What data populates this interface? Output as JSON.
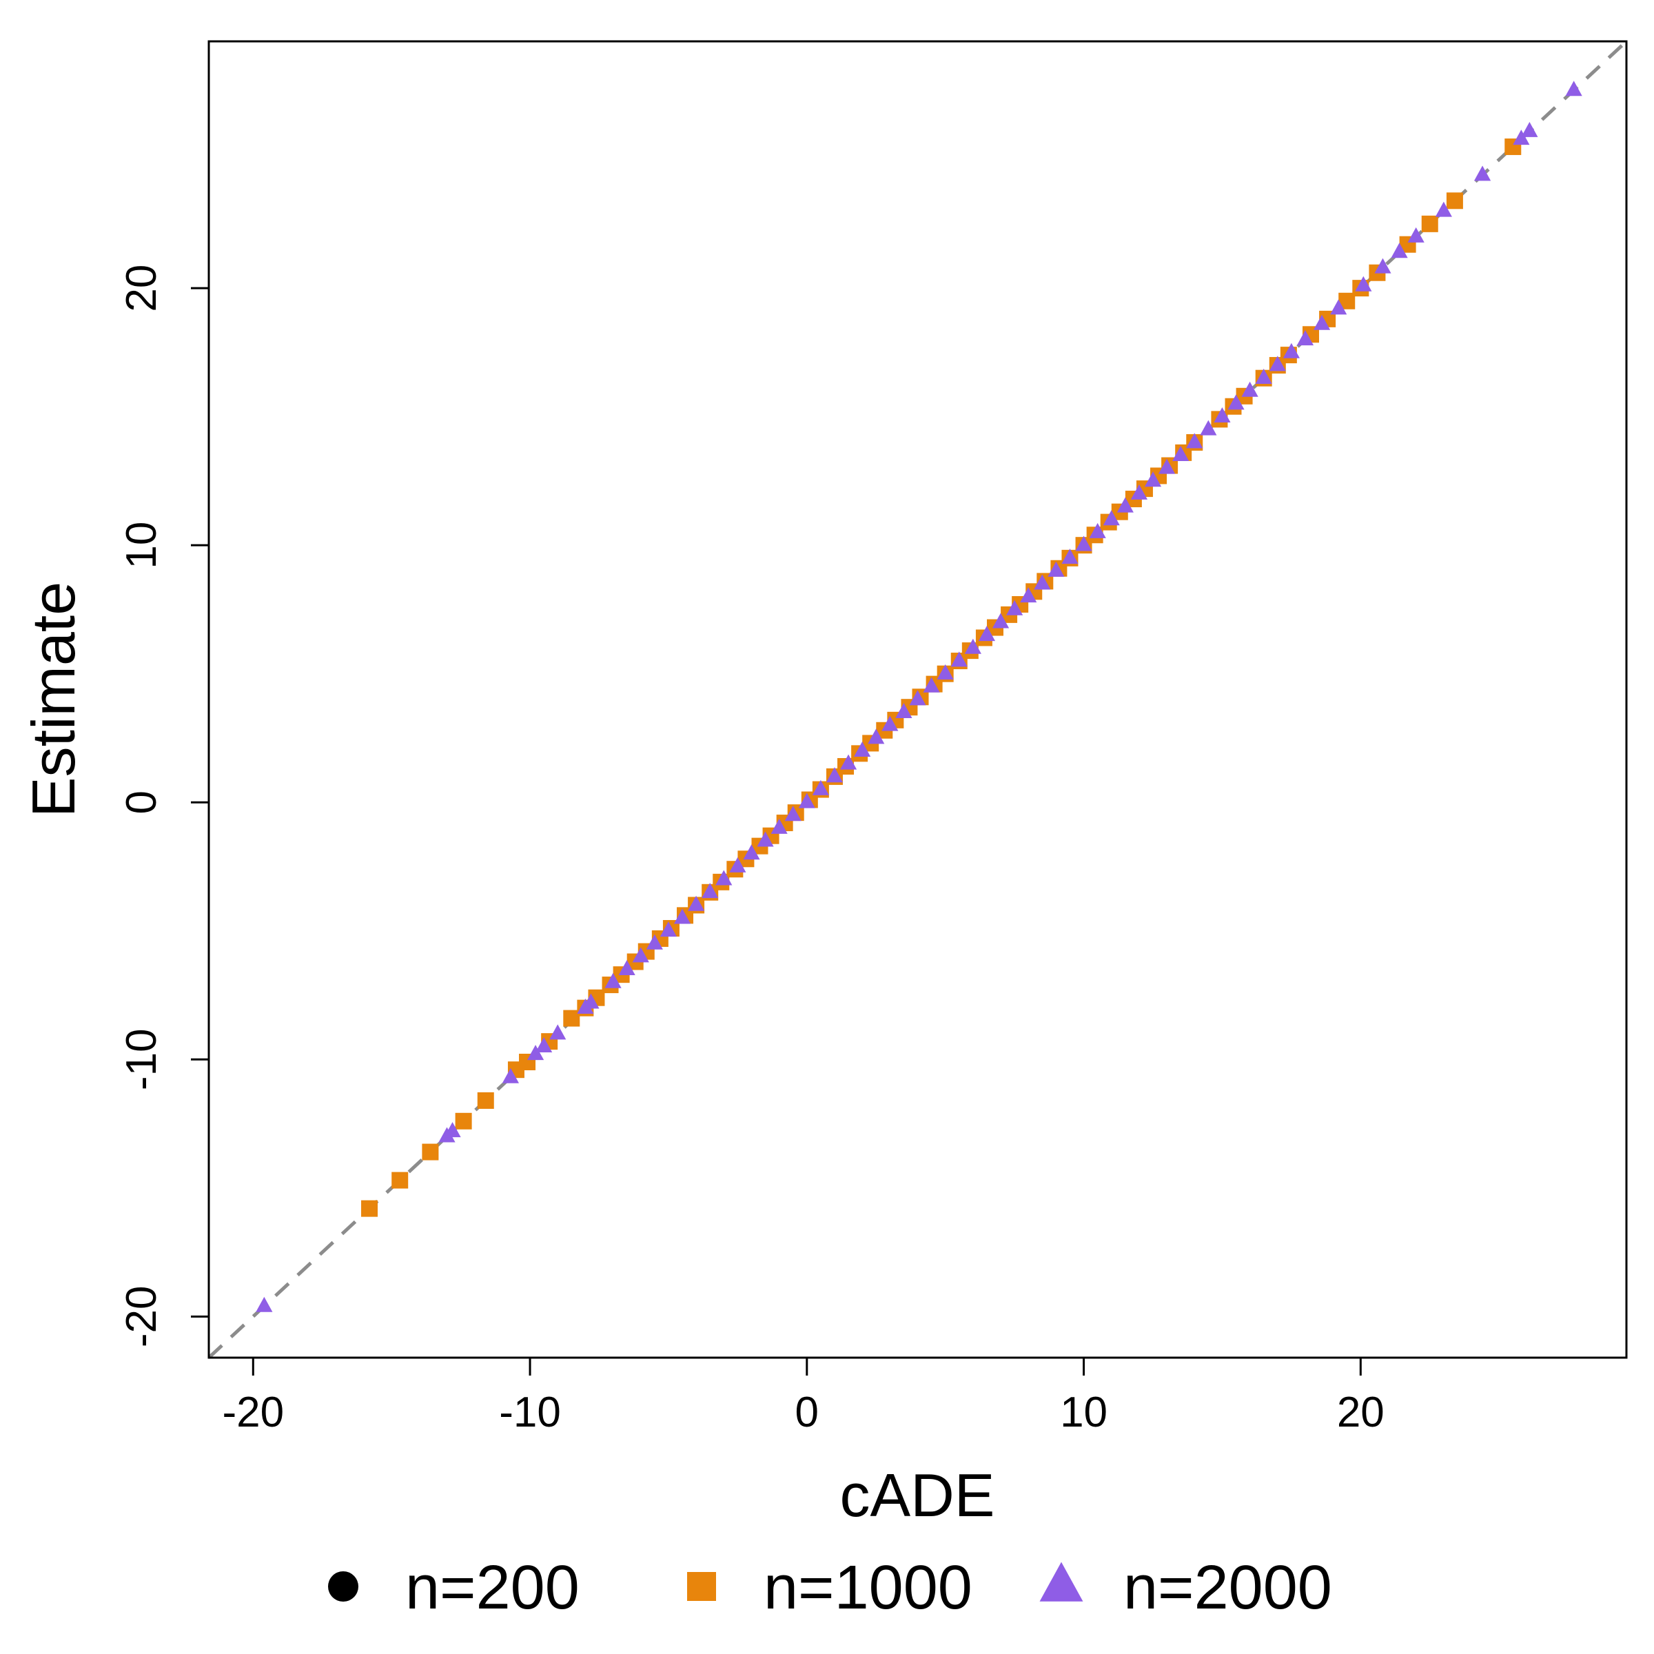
{
  "chart_data": {
    "type": "scatter",
    "title": "",
    "xlabel": "cADE",
    "ylabel": "Estimate",
    "xlim": [
      -21.6,
      29.6
    ],
    "ylim": [
      -21.6,
      29.6
    ],
    "xticks": [
      -20,
      -10,
      0,
      10,
      20
    ],
    "yticks": [
      -20,
      -10,
      0,
      10,
      20
    ],
    "xtick_labels": [
      "-20",
      "-10",
      "0",
      "10",
      "20"
    ],
    "ytick_labels": [
      "-20",
      "-10",
      "0",
      "10",
      "20"
    ],
    "grid": false,
    "reference_line": {
      "type": "identity",
      "style": "dashed",
      "color": "#8c8c8c"
    },
    "legend": {
      "position": "bottom",
      "entries": [
        "n=200",
        "n=1000",
        "n=2000"
      ]
    },
    "series": [
      {
        "name": "n=200",
        "marker": "circle",
        "color": "#000000",
        "points": []
      },
      {
        "name": "n=1000",
        "marker": "square",
        "color": "#e8850c",
        "points": [
          [
            -15.8,
            -15.8
          ],
          [
            -14.7,
            -14.7
          ],
          [
            -13.6,
            -13.6
          ],
          [
            -12.4,
            -12.4
          ],
          [
            -11.6,
            -11.6
          ],
          [
            -10.5,
            -10.4
          ],
          [
            -10.1,
            -10.1
          ],
          [
            -9.3,
            -9.3
          ],
          [
            -8.5,
            -8.4
          ],
          [
            -8.0,
            -8.0
          ],
          [
            -7.6,
            -7.6
          ],
          [
            -7.1,
            -7.1
          ],
          [
            -6.7,
            -6.7
          ],
          [
            -6.2,
            -6.2
          ],
          [
            -5.8,
            -5.8
          ],
          [
            -5.3,
            -5.3
          ],
          [
            -4.9,
            -4.9
          ],
          [
            -4.4,
            -4.4
          ],
          [
            -4.0,
            -4.0
          ],
          [
            -3.5,
            -3.5
          ],
          [
            -3.1,
            -3.1
          ],
          [
            -2.6,
            -2.6
          ],
          [
            -2.2,
            -2.2
          ],
          [
            -1.7,
            -1.7
          ],
          [
            -1.3,
            -1.3
          ],
          [
            -0.8,
            -0.8
          ],
          [
            -0.4,
            -0.4
          ],
          [
            0.1,
            0.1
          ],
          [
            0.5,
            0.5
          ],
          [
            1.0,
            1.0
          ],
          [
            1.4,
            1.4
          ],
          [
            1.9,
            1.9
          ],
          [
            2.3,
            2.3
          ],
          [
            2.8,
            2.8
          ],
          [
            3.2,
            3.2
          ],
          [
            3.7,
            3.7
          ],
          [
            4.1,
            4.1
          ],
          [
            4.6,
            4.6
          ],
          [
            5.0,
            5.0
          ],
          [
            5.5,
            5.5
          ],
          [
            5.9,
            5.9
          ],
          [
            6.4,
            6.4
          ],
          [
            6.8,
            6.8
          ],
          [
            7.3,
            7.3
          ],
          [
            7.7,
            7.7
          ],
          [
            8.2,
            8.2
          ],
          [
            8.6,
            8.6
          ],
          [
            9.1,
            9.1
          ],
          [
            9.5,
            9.5
          ],
          [
            10.0,
            10.0
          ],
          [
            10.4,
            10.4
          ],
          [
            10.9,
            10.9
          ],
          [
            11.3,
            11.3
          ],
          [
            11.8,
            11.8
          ],
          [
            12.2,
            12.2
          ],
          [
            12.7,
            12.7
          ],
          [
            13.1,
            13.1
          ],
          [
            13.6,
            13.6
          ],
          [
            14.0,
            14.0
          ],
          [
            14.9,
            14.9
          ],
          [
            15.4,
            15.4
          ],
          [
            15.8,
            15.8
          ],
          [
            16.5,
            16.5
          ],
          [
            17.0,
            17.0
          ],
          [
            17.4,
            17.4
          ],
          [
            18.2,
            18.2
          ],
          [
            18.8,
            18.8
          ],
          [
            19.5,
            19.5
          ],
          [
            20.0,
            20.0
          ],
          [
            20.6,
            20.6
          ],
          [
            21.7,
            21.7
          ],
          [
            22.5,
            22.5
          ],
          [
            23.4,
            23.4
          ],
          [
            25.5,
            25.5
          ]
        ]
      },
      {
        "name": "n=2000",
        "marker": "triangle",
        "color": "#8f5de6",
        "points": [
          [
            -19.6,
            -19.6
          ],
          [
            -13.0,
            -13.0
          ],
          [
            -12.8,
            -12.8
          ],
          [
            -10.7,
            -10.7
          ],
          [
            -9.8,
            -9.8
          ],
          [
            -9.5,
            -9.5
          ],
          [
            -9.0,
            -9.0
          ],
          [
            -8.0,
            -8.0
          ],
          [
            -7.8,
            -7.8
          ],
          [
            -7.0,
            -7.0
          ],
          [
            -6.5,
            -6.5
          ],
          [
            -6.0,
            -6.0
          ],
          [
            -5.5,
            -5.5
          ],
          [
            -5.0,
            -5.0
          ],
          [
            -4.5,
            -4.5
          ],
          [
            -4.0,
            -4.0
          ],
          [
            -3.5,
            -3.5
          ],
          [
            -3.0,
            -3.0
          ],
          [
            -2.5,
            -2.5
          ],
          [
            -2.0,
            -2.0
          ],
          [
            -1.5,
            -1.5
          ],
          [
            -1.0,
            -1.0
          ],
          [
            -0.5,
            -0.5
          ],
          [
            0.0,
            0.0
          ],
          [
            0.5,
            0.5
          ],
          [
            1.0,
            1.0
          ],
          [
            1.5,
            1.5
          ],
          [
            2.0,
            2.0
          ],
          [
            2.5,
            2.5
          ],
          [
            3.0,
            3.0
          ],
          [
            3.5,
            3.5
          ],
          [
            4.0,
            4.0
          ],
          [
            4.5,
            4.5
          ],
          [
            5.0,
            5.0
          ],
          [
            5.5,
            5.5
          ],
          [
            6.0,
            6.0
          ],
          [
            6.5,
            6.5
          ],
          [
            7.0,
            7.0
          ],
          [
            7.5,
            7.5
          ],
          [
            8.0,
            8.0
          ],
          [
            8.5,
            8.5
          ],
          [
            9.0,
            9.0
          ],
          [
            9.5,
            9.5
          ],
          [
            10.0,
            10.0
          ],
          [
            10.5,
            10.5
          ],
          [
            11.0,
            11.0
          ],
          [
            11.5,
            11.5
          ],
          [
            12.0,
            12.0
          ],
          [
            12.5,
            12.5
          ],
          [
            13.0,
            13.0
          ],
          [
            13.5,
            13.5
          ],
          [
            14.0,
            14.0
          ],
          [
            14.5,
            14.5
          ],
          [
            15.0,
            15.0
          ],
          [
            15.5,
            15.5
          ],
          [
            16.0,
            16.0
          ],
          [
            16.5,
            16.5
          ],
          [
            17.0,
            17.0
          ],
          [
            17.5,
            17.5
          ],
          [
            18.0,
            18.0
          ],
          [
            18.6,
            18.6
          ],
          [
            19.2,
            19.2
          ],
          [
            20.1,
            20.1
          ],
          [
            20.8,
            20.8
          ],
          [
            21.4,
            21.4
          ],
          [
            22.0,
            22.0
          ],
          [
            23.0,
            23.0
          ],
          [
            24.4,
            24.4
          ],
          [
            25.8,
            25.8
          ],
          [
            26.1,
            26.1
          ],
          [
            27.7,
            27.7
          ]
        ]
      }
    ]
  }
}
